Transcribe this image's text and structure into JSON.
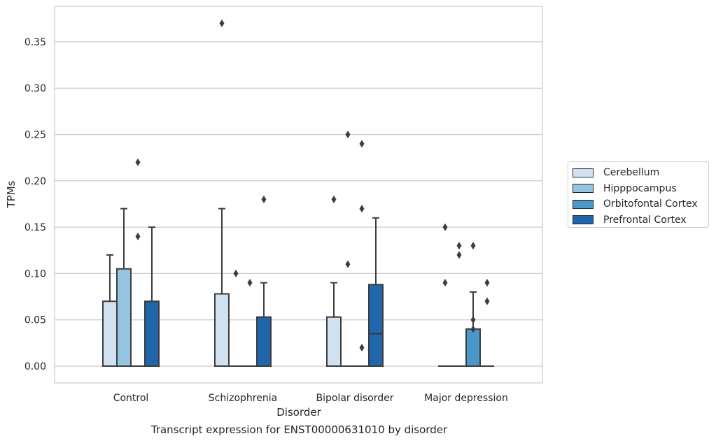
{
  "chart_data": {
    "type": "box",
    "title": "Transcript expression for ENST00000631010 by disorder",
    "xlabel": "Disorder",
    "ylabel": "TPMs",
    "ylim": [
      -0.018,
      0.389
    ],
    "yticks": [
      "0.00",
      "0.05",
      "0.10",
      "0.15",
      "0.20",
      "0.25",
      "0.30",
      "0.35"
    ],
    "categories": [
      "Control",
      "Schizophrenia",
      "Bipolar disorder",
      "Major depression"
    ],
    "grid": "horizontal",
    "legend_position": "right",
    "series": [
      {
        "name": "Cerebellum",
        "color": "#d0e1f2",
        "boxes": [
          {
            "q1": 0,
            "median": 0,
            "q3": 0.07,
            "whisker_low": 0,
            "whisker_high": 0.12,
            "outliers": []
          },
          {
            "q1": 0,
            "median": 0,
            "q3": 0.078,
            "whisker_low": 0,
            "whisker_high": 0.17,
            "outliers": [
              0.37
            ]
          },
          {
            "q1": 0,
            "median": 0,
            "q3": 0.053,
            "whisker_low": 0,
            "whisker_high": 0.09,
            "outliers": [
              0.18
            ]
          },
          {
            "q1": 0,
            "median": 0,
            "q3": 0,
            "whisker_low": 0,
            "whisker_high": 0,
            "outliers": [
              0.15,
              0.09
            ]
          }
        ]
      },
      {
        "name": "Hipppocampus",
        "color": "#94c4df",
        "boxes": [
          {
            "q1": 0,
            "median": 0,
            "q3": 0.105,
            "whisker_low": 0,
            "whisker_high": 0.17,
            "outliers": []
          },
          {
            "q1": 0,
            "median": 0,
            "q3": 0,
            "whisker_low": 0,
            "whisker_high": 0,
            "outliers": [
              0.1
            ]
          },
          {
            "q1": 0,
            "median": 0,
            "q3": 0,
            "whisker_low": 0,
            "whisker_high": 0,
            "outliers": [
              0.25,
              0.11
            ]
          },
          {
            "q1": 0,
            "median": 0,
            "q3": 0,
            "whisker_low": 0,
            "whisker_high": 0,
            "outliers": [
              0.13,
              0.12
            ]
          }
        ]
      },
      {
        "name": "Orbitofontal Cortex",
        "color": "#4a98c9",
        "boxes": [
          {
            "q1": 0,
            "median": 0,
            "q3": 0,
            "whisker_low": 0,
            "whisker_high": 0,
            "outliers": [
              0.22,
              0.14
            ]
          },
          {
            "q1": 0,
            "median": 0,
            "q3": 0,
            "whisker_low": 0,
            "whisker_high": 0,
            "outliers": [
              0.09
            ]
          },
          {
            "q1": 0,
            "median": 0,
            "q3": 0,
            "whisker_low": 0,
            "whisker_high": 0,
            "outliers": [
              0.24,
              0.17,
              0.02
            ]
          },
          {
            "q1": 0,
            "median": 0,
            "q3": 0.04,
            "whisker_low": 0,
            "whisker_high": 0.08,
            "outliers": [
              0.13,
              0.05,
              0.04
            ]
          }
        ]
      },
      {
        "name": "Prefrontal Cortex",
        "color": "#2066ac",
        "boxes": [
          {
            "q1": 0,
            "median": 0,
            "q3": 0.07,
            "whisker_low": 0,
            "whisker_high": 0.15,
            "outliers": []
          },
          {
            "q1": 0,
            "median": 0,
            "q3": 0.053,
            "whisker_low": 0,
            "whisker_high": 0.09,
            "outliers": [
              0.18
            ]
          },
          {
            "q1": 0,
            "median": 0.035,
            "q3": 0.088,
            "whisker_low": 0,
            "whisker_high": 0.16,
            "outliers": []
          },
          {
            "q1": 0,
            "median": 0,
            "q3": 0,
            "whisker_low": 0,
            "whisker_high": 0,
            "outliers": [
              0.09,
              0.07
            ]
          }
        ]
      }
    ]
  }
}
